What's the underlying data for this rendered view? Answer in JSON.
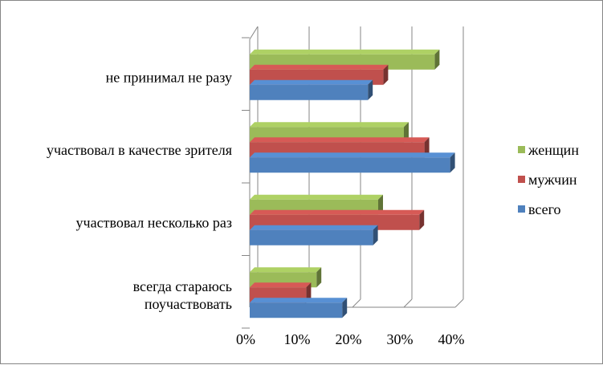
{
  "chart_data": {
    "type": "bar",
    "orientation": "horizontal",
    "three_d": true,
    "categories": [
      [
        "не принимал не разу"
      ],
      [
        "участвовал в качестве зрителя"
      ],
      [
        "участвовал несколько раз"
      ],
      [
        "всегда стараюсь",
        "поучаствовать"
      ]
    ],
    "series": [
      {
        "name": "женщин",
        "values": [
          36,
          30,
          25,
          13
        ],
        "color": "#9BBB59"
      },
      {
        "name": "мужчин",
        "values": [
          26,
          34,
          33,
          11
        ],
        "color": "#C0504D"
      },
      {
        "name": "всего",
        "values": [
          23,
          39,
          24,
          18
        ],
        "color": "#4F81BD"
      }
    ],
    "xlim": [
      0,
      40
    ],
    "ticks": [
      "0%",
      "10%",
      "20%",
      "30%",
      "40%"
    ],
    "grid": true,
    "legend_position": "right"
  }
}
